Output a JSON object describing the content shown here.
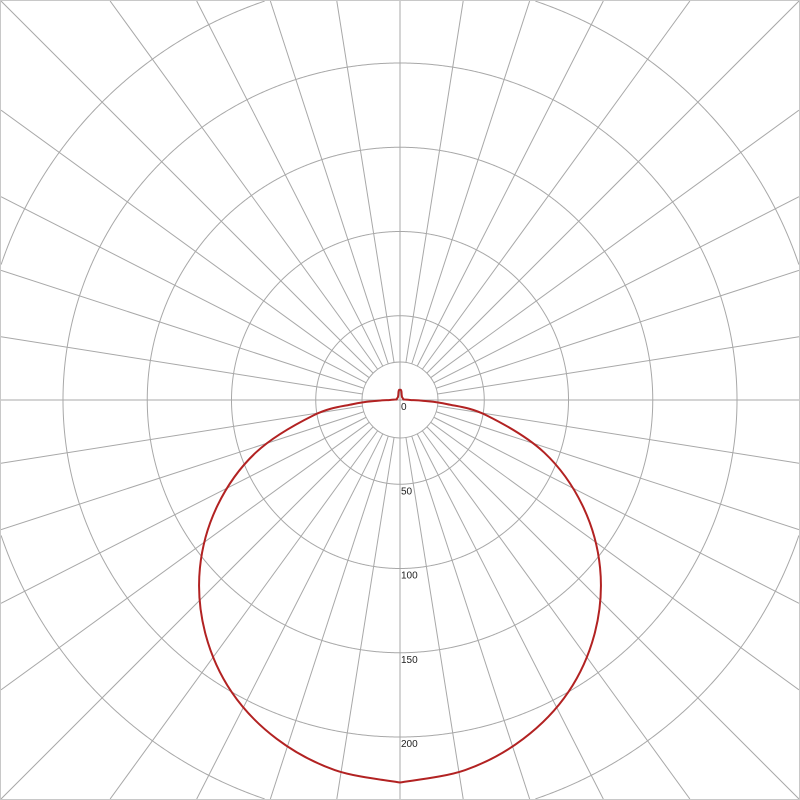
{
  "chart_data": {
    "type": "polar-line",
    "title": "",
    "radial_ticks": [
      "0",
      "50",
      "100",
      "150",
      "200"
    ],
    "radial_rings": [
      50,
      100,
      150,
      200,
      250
    ],
    "rlim": [
      0,
      250
    ],
    "angular_grid_step_deg": 9,
    "grid": true,
    "colors": {
      "curve": "#b22222",
      "grid": "#a8a8a8"
    },
    "series": [
      {
        "angle_from_nadir_deg": [
          0,
          10,
          20,
          30,
          40,
          50,
          60,
          70,
          80,
          85,
          88,
          90,
          95,
          100,
          120,
          140,
          160,
          170,
          175,
          180
        ],
        "values": [
          227,
          223,
          214,
          200,
          180,
          155,
          125,
          91,
          52,
          28,
          14,
          6,
          3,
          2,
          2,
          2,
          3,
          5,
          6,
          6
        ]
      }
    ]
  }
}
